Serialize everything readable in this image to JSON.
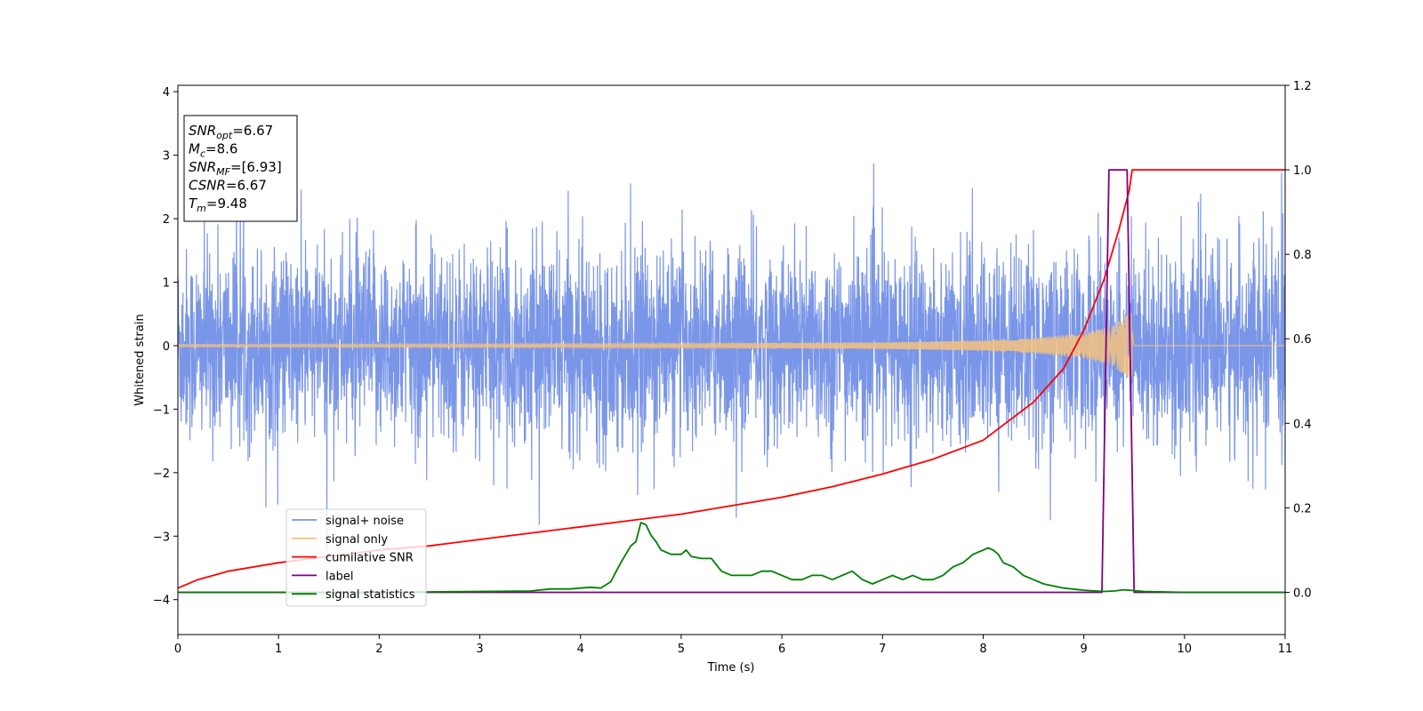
{
  "chart_data": {
    "type": "line",
    "title": "",
    "xlabel": "Time (s)",
    "ylabel": "Whitened strain",
    "xlim": [
      0,
      11
    ],
    "ylim": [
      -4.55,
      4.1
    ],
    "y2lim": [
      -0.1,
      1.2
    ],
    "grid": false,
    "legend_placement": "lower-left",
    "x_ticks": [
      0,
      1,
      2,
      3,
      4,
      5,
      6,
      7,
      8,
      9,
      10,
      11
    ],
    "x_tick_labels": [
      "0",
      "1",
      "2",
      "3",
      "4",
      "5",
      "6",
      "7",
      "8",
      "9",
      "10",
      "11"
    ],
    "y_ticks": [
      -4,
      -3,
      -2,
      -1,
      0,
      1,
      2,
      3,
      4
    ],
    "y_tick_labels": [
      "−4",
      "−3",
      "−2",
      "−1",
      "0",
      "1",
      "2",
      "3",
      "4"
    ],
    "y2_ticks": [
      0.0,
      0.2,
      0.4,
      0.6,
      0.8,
      1.0,
      1.2
    ],
    "y2_tick_labels": [
      "0.0",
      "0.2",
      "0.4",
      "0.6",
      "0.8",
      "1.0",
      "1.2"
    ],
    "info_box": [
      {
        "main": "SNR",
        "sub": "opt",
        "rest": "=6.67"
      },
      {
        "main": "M",
        "sub": "c",
        "rest": "=8.6"
      },
      {
        "main": "SNR",
        "sub": "MF",
        "rest": "=[6.93]"
      },
      {
        "main": "CSNR",
        "sub": "",
        "rest": "=6.67"
      },
      {
        "main": "T",
        "sub": "m",
        "rest": "=9.48"
      }
    ],
    "series": [
      {
        "name": "signal+ noise",
        "color": "#7a96e8",
        "axis": "left",
        "kind": "noise",
        "noise_sigma": 0.75,
        "x_range": [
          0,
          11
        ]
      },
      {
        "name": "signal only",
        "color": "#f5c27f",
        "axis": "left",
        "kind": "chirp",
        "x_range": [
          0,
          9.48
        ],
        "amplitude_envelope": {
          "x": [
            0,
            2,
            4,
            6,
            7,
            8,
            8.5,
            9,
            9.2,
            9.4,
            9.48
          ],
          "y": [
            0.02,
            0.025,
            0.03,
            0.04,
            0.05,
            0.08,
            0.12,
            0.2,
            0.28,
            0.45,
            0.55
          ]
        }
      },
      {
        "name": "cumilative SNR",
        "color": "#ff0000",
        "axis": "right",
        "x": [
          0,
          0.2,
          0.5,
          1,
          1.5,
          2,
          2.5,
          3,
          3.5,
          4,
          4.5,
          5,
          5.5,
          6,
          6.5,
          7,
          7.5,
          8,
          8.5,
          8.8,
          9.0,
          9.2,
          9.35,
          9.45,
          9.48,
          9.5,
          11
        ],
        "y": [
          0.01,
          0.03,
          0.05,
          0.07,
          0.085,
          0.1,
          0.11,
          0.125,
          0.14,
          0.155,
          0.17,
          0.185,
          0.205,
          0.225,
          0.25,
          0.28,
          0.315,
          0.36,
          0.45,
          0.53,
          0.62,
          0.74,
          0.86,
          0.95,
          1.0,
          1.0,
          1.0
        ]
      },
      {
        "name": "label",
        "color": "#800080",
        "axis": "right",
        "x": [
          0,
          9.18,
          9.25,
          9.43,
          9.5,
          11
        ],
        "y": [
          0,
          0,
          1,
          1,
          0,
          0
        ]
      },
      {
        "name": "signal statistics",
        "color": "#008000",
        "axis": "right",
        "x": [
          0,
          1,
          2,
          3,
          3.5,
          3.7,
          3.9,
          4.0,
          4.1,
          4.2,
          4.3,
          4.4,
          4.5,
          4.55,
          4.6,
          4.65,
          4.7,
          4.75,
          4.8,
          4.9,
          5.0,
          5.05,
          5.1,
          5.2,
          5.3,
          5.4,
          5.5,
          5.6,
          5.7,
          5.8,
          5.9,
          6.0,
          6.1,
          6.2,
          6.3,
          6.4,
          6.5,
          6.6,
          6.7,
          6.8,
          6.9,
          7.0,
          7.1,
          7.2,
          7.3,
          7.4,
          7.5,
          7.6,
          7.7,
          7.8,
          7.9,
          8.0,
          8.05,
          8.1,
          8.15,
          8.2,
          8.3,
          8.4,
          8.5,
          8.6,
          8.8,
          9.0,
          9.2,
          9.3,
          9.4,
          9.5,
          9.6,
          10,
          10.5,
          11
        ],
        "y": [
          0.0,
          0.0,
          0.0,
          0.002,
          0.003,
          0.008,
          0.008,
          0.01,
          0.012,
          0.01,
          0.025,
          0.07,
          0.11,
          0.12,
          0.165,
          0.16,
          0.135,
          0.12,
          0.1,
          0.09,
          0.09,
          0.1,
          0.085,
          0.08,
          0.08,
          0.05,
          0.04,
          0.04,
          0.04,
          0.05,
          0.05,
          0.04,
          0.03,
          0.03,
          0.04,
          0.04,
          0.03,
          0.04,
          0.05,
          0.03,
          0.02,
          0.03,
          0.04,
          0.03,
          0.04,
          0.03,
          0.03,
          0.04,
          0.06,
          0.07,
          0.09,
          0.1,
          0.105,
          0.1,
          0.09,
          0.07,
          0.06,
          0.04,
          0.03,
          0.02,
          0.01,
          0.005,
          0.002,
          0.003,
          0.006,
          0.004,
          0.002,
          0.0,
          0.0,
          0.0
        ]
      }
    ]
  }
}
